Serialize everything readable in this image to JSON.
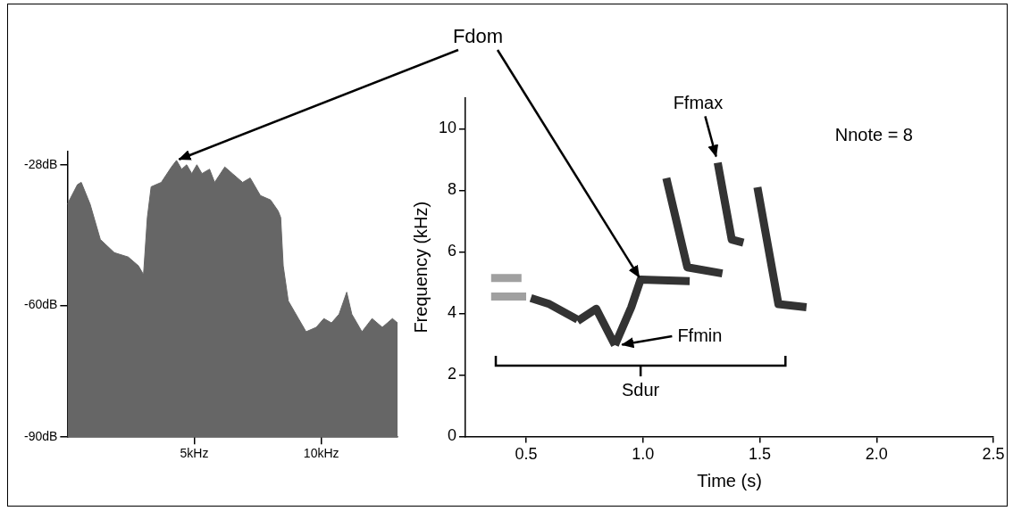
{
  "chart_data": [
    {
      "type": "area",
      "color": "#666666",
      "grid": false,
      "x": [
        0,
        0.4,
        0.55,
        0.9,
        1.3,
        1.85,
        2.4,
        2.8,
        3.0,
        3.15,
        3.3,
        3.7,
        4.1,
        4.3,
        4.5,
        4.7,
        4.9,
        5.1,
        5.3,
        5.6,
        5.8,
        6.2,
        6.5,
        6.9,
        7.2,
        7.6,
        8.0,
        8.3,
        8.4,
        8.5,
        8.7,
        9.1,
        9.4,
        9.8,
        10.1,
        10.4,
        10.7,
        11.0,
        11.2,
        11.6,
        12.0,
        12.4,
        12.8,
        13.0
      ],
      "values": [
        -37,
        -32.5,
        -32,
        -37,
        -45,
        -48,
        -49,
        -51,
        -53,
        -40,
        -33,
        -32,
        -28.5,
        -27,
        -29,
        -28,
        -30,
        -28,
        -30,
        -29,
        -32,
        -28.5,
        -30,
        -32,
        -31,
        -35,
        -36,
        -38.5,
        -40,
        -51,
        -59,
        -63,
        -66,
        -65,
        -63,
        -64,
        -62,
        -57,
        -62,
        -66,
        -63,
        -65,
        -63,
        -64
      ],
      "xlim": [
        0,
        13
      ],
      "xticks": [
        {
          "value": 5,
          "label": "5kHz"
        },
        {
          "value": 10,
          "label": "10kHz"
        }
      ],
      "ylim": [
        -90,
        -25
      ],
      "yticks": [
        {
          "value": -90,
          "label": "-90dB"
        },
        {
          "value": -60,
          "label": "-60dB"
        },
        {
          "value": -28,
          "label": "-28dB"
        }
      ]
    },
    {
      "type": "line",
      "grid": false,
      "x_label": "Time (s)",
      "y_label": "Frequency (kHz)",
      "series": [
        {
          "color": "#a0a0a0",
          "x": [
            0.35,
            0.5
          ],
          "values": [
            4.55,
            4.55
          ]
        },
        {
          "color": "#a0a0a0",
          "x": [
            0.35,
            0.48
          ],
          "values": [
            5.15,
            5.15
          ]
        },
        {
          "color": "#333333",
          "x": [
            0.52,
            0.6,
            0.72
          ],
          "values": [
            4.5,
            4.3,
            3.8
          ]
        },
        {
          "color": "#333333",
          "x": [
            0.72,
            0.8,
            0.88
          ],
          "values": [
            3.75,
            4.15,
            2.97
          ]
        },
        {
          "color": "#333333",
          "x": [
            0.88,
            0.95,
            0.99,
            1.2
          ],
          "values": [
            2.97,
            4.2,
            5.1,
            5.05
          ]
        },
        {
          "color": "#333333",
          "x": [
            1.1,
            1.19,
            1.34
          ],
          "values": [
            8.4,
            5.5,
            5.3
          ]
        },
        {
          "color": "#333333",
          "x": [
            1.32,
            1.38,
            1.43
          ],
          "values": [
            8.9,
            6.4,
            6.3
          ]
        },
        {
          "color": "#333333",
          "x": [
            1.49,
            1.58,
            1.7
          ],
          "values": [
            8.1,
            4.3,
            4.2
          ]
        }
      ],
      "xlim": [
        0.24,
        2.5
      ],
      "xticks": [
        0.5,
        {
          "value": 1,
          "label": "1.0"
        },
        1.5,
        {
          "value": 2,
          "label": "2.0"
        },
        2.5
      ],
      "ylim": [
        0,
        11
      ],
      "yticks": [
        0,
        2,
        4,
        6,
        8,
        10
      ],
      "annotations": [
        {
          "text": "Ffmax",
          "x": 1.32,
          "y": 8.9
        },
        {
          "text": "Ffmin",
          "x": 0.88,
          "y": 2.97
        },
        {
          "text": "Sdur",
          "x": [
            0.37,
            1.61
          ],
          "y": 2.3
        },
        {
          "text": "Nnote = 8"
        }
      ]
    }
  ],
  "annotations": [
    {
      "text": "Fdom",
      "points": [
        {
          "x": 4.3,
          "y": -27
        },
        {
          "x": 0.99,
          "y": 5.1
        }
      ]
    }
  ]
}
